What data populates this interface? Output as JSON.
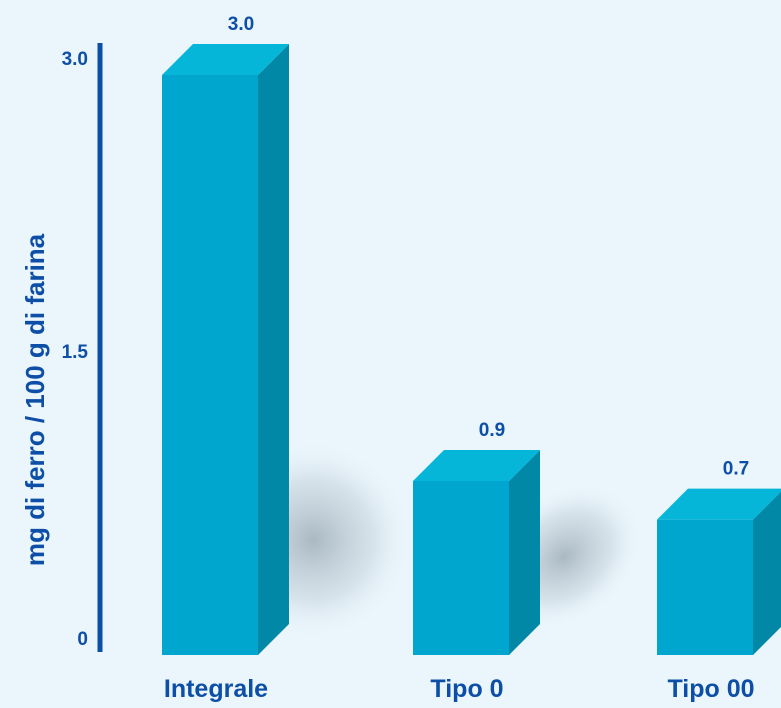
{
  "chart_data": {
    "type": "bar",
    "title": "",
    "xlabel": "",
    "ylabel": "mg  di ferro / 100 g di farina",
    "categories": [
      "Integrale",
      "Tipo 0",
      "Tipo 00"
    ],
    "values": [
      3.0,
      0.9,
      0.7
    ],
    "value_labels": [
      "3.0",
      "0.9",
      "0.7"
    ],
    "ylim": [
      0,
      3.0
    ],
    "yticks": [
      0,
      1.5,
      3.0
    ],
    "ytick_labels": [
      "0",
      "1.5",
      "3.0"
    ],
    "grid": false,
    "legend": "none",
    "style": "3d",
    "colors": {
      "background": "#eaf5fc",
      "bar_front": "#00a6cd",
      "bar_top": "#05b6d9",
      "bar_side": "#0088a6",
      "axis": "#0d4ea6",
      "text": "#0d4ea6"
    }
  }
}
